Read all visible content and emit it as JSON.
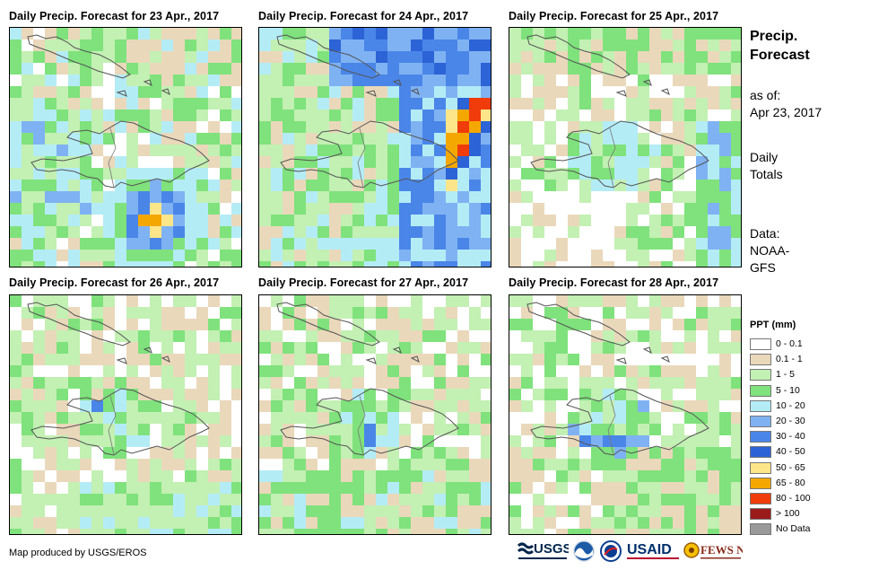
{
  "panels": [
    {
      "title": "Daily Precip. Forecast for 23 Apr., 2017",
      "seed": 11,
      "scenario": "d23"
    },
    {
      "title": "Daily Precip. Forecast for 24 Apr., 2017",
      "seed": 23,
      "scenario": "d24"
    },
    {
      "title": "Daily Precip. Forecast for 25 Apr., 2017",
      "seed": 37,
      "scenario": "d25"
    },
    {
      "title": "Daily Precip. Forecast for 26 Apr., 2017",
      "seed": 41,
      "scenario": "d26"
    },
    {
      "title": "Daily Precip. Forecast for 27 Apr., 2017",
      "seed": 53,
      "scenario": "d27"
    },
    {
      "title": "Daily Precip. Forecast for 28 Apr., 2017",
      "seed": 67,
      "scenario": "d28"
    }
  ],
  "side": {
    "title_line1": "Precip.",
    "title_line2": "Forecast",
    "asof_line1": "as of:",
    "asof_line2": "Apr 23, 2017",
    "totals_line1": "Daily",
    "totals_line2": "Totals",
    "data_line1": "Data:",
    "data_line2": "NOAA-",
    "data_line3": "GFS"
  },
  "legend": {
    "title": "PPT (mm)",
    "classes": [
      {
        "label": "0 - 0.1",
        "color": "#ffffff"
      },
      {
        "label": "0.1 - 1",
        "color": "#ead8bb"
      },
      {
        "label": "1 - 5",
        "color": "#c3f0b3"
      },
      {
        "label": "5 - 10",
        "color": "#7fe27c"
      },
      {
        "label": "10 - 20",
        "color": "#b4ecf6"
      },
      {
        "label": "20 - 30",
        "color": "#7fb2f2"
      },
      {
        "label": "30 - 40",
        "color": "#4a86e8"
      },
      {
        "label": "40 - 50",
        "color": "#2c63d6"
      },
      {
        "label": "50 - 65",
        "color": "#fde68a"
      },
      {
        "label": "65 - 80",
        "color": "#f4a700"
      },
      {
        "label": "80 - 100",
        "color": "#f03c0a"
      },
      {
        "label": "> 100",
        "color": "#9b1a1a"
      },
      {
        "label": "No Data",
        "color": "#999999"
      }
    ]
  },
  "credit": "Map produced by USGS/EROS",
  "logos": {
    "usgs": "USGS",
    "usaid": "USAID",
    "fews": "FEWS NET"
  }
}
